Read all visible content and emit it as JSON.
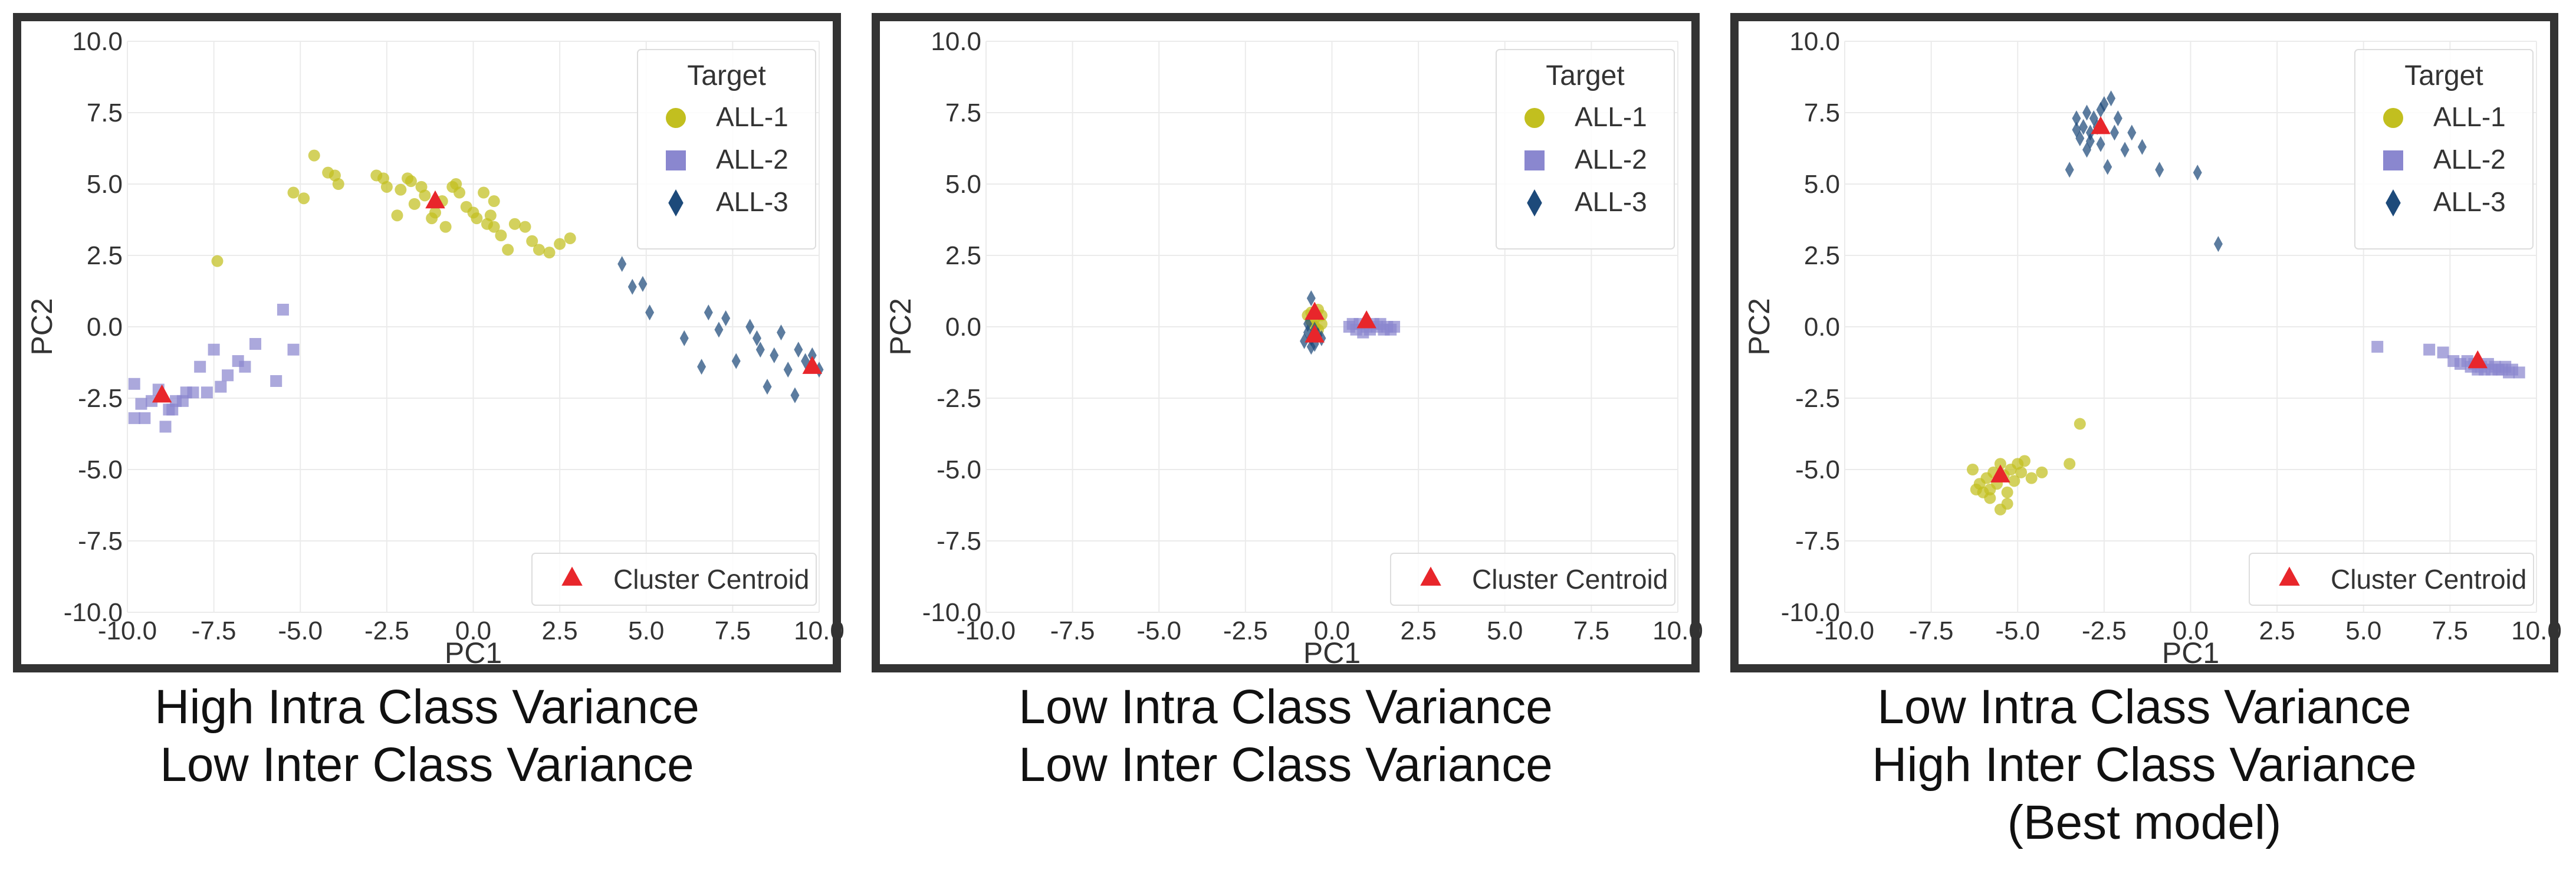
{
  "colors": {
    "all1": "#c2bf1f",
    "all2": "#8a87cf",
    "all3": "#1d4a7a",
    "centroid": "#e8262b"
  },
  "legend": {
    "title": "Target",
    "entries": [
      {
        "label": "ALL-1",
        "marker": "circle-icon"
      },
      {
        "label": "ALL-2",
        "marker": "square-icon"
      },
      {
        "label": "ALL-3",
        "marker": "diamond-icon"
      }
    ],
    "centroid_label": "Cluster Centroid"
  },
  "chart_data": [
    {
      "type": "scatter",
      "xlabel": "PC1",
      "ylabel": "PC2",
      "xlim": [
        -10,
        10
      ],
      "ylim": [
        -10,
        10
      ],
      "xticks": [
        "-10.0",
        "-7.5",
        "-5.0",
        "-2.5",
        "0.0",
        "2.5",
        "5.0",
        "7.5",
        "10.0"
      ],
      "yticks": [
        "10.0",
        "7.5",
        "5.0",
        "2.5",
        "0.0",
        "-2.5",
        "-5.0",
        "-7.5",
        "-10.0"
      ],
      "caption": [
        "High Intra Class Variance",
        "Low Inter Class Variance"
      ],
      "series": [
        {
          "name": "ALL-1",
          "points": [
            [
              -7.4,
              2.3
            ],
            [
              -5.2,
              4.7
            ],
            [
              -4.9,
              4.5
            ],
            [
              -4.6,
              6.0
            ],
            [
              -4.2,
              5.4
            ],
            [
              -3.9,
              5.0
            ],
            [
              -4.0,
              5.3
            ],
            [
              -2.8,
              5.3
            ],
            [
              -2.6,
              5.2
            ],
            [
              -2.5,
              4.9
            ],
            [
              -2.1,
              4.8
            ],
            [
              -2.2,
              3.9
            ],
            [
              -1.9,
              5.2
            ],
            [
              -1.8,
              5.1
            ],
            [
              -1.7,
              4.3
            ],
            [
              -1.5,
              4.9
            ],
            [
              -1.4,
              4.6
            ],
            [
              -1.2,
              3.8
            ],
            [
              -1.1,
              4.0
            ],
            [
              -0.9,
              4.4
            ],
            [
              -0.8,
              3.5
            ],
            [
              -0.6,
              4.9
            ],
            [
              -0.5,
              5.0
            ],
            [
              -0.4,
              4.7
            ],
            [
              -0.2,
              4.2
            ],
            [
              0.0,
              4.0
            ],
            [
              0.1,
              3.8
            ],
            [
              0.3,
              4.7
            ],
            [
              0.5,
              3.9
            ],
            [
              0.6,
              3.5
            ],
            [
              0.8,
              3.2
            ],
            [
              1.0,
              2.7
            ],
            [
              1.2,
              3.6
            ],
            [
              1.5,
              3.5
            ],
            [
              1.7,
              3.0
            ],
            [
              1.9,
              2.7
            ],
            [
              2.2,
              2.6
            ],
            [
              2.5,
              2.9
            ],
            [
              2.8,
              3.1
            ],
            [
              0.4,
              3.6
            ],
            [
              0.6,
              4.4
            ]
          ]
        },
        {
          "name": "ALL-2",
          "points": [
            [
              -9.8,
              -2.0
            ],
            [
              -9.8,
              -3.2
            ],
            [
              -9.5,
              -3.2
            ],
            [
              -9.3,
              -2.6
            ],
            [
              -9.1,
              -2.2
            ],
            [
              -8.9,
              -3.5
            ],
            [
              -8.7,
              -2.9
            ],
            [
              -8.6,
              -2.6
            ],
            [
              -8.4,
              -2.6
            ],
            [
              -8.3,
              -2.3
            ],
            [
              -8.1,
              -2.3
            ],
            [
              -7.9,
              -1.4
            ],
            [
              -7.7,
              -2.3
            ],
            [
              -7.5,
              -0.8
            ],
            [
              -7.3,
              -2.1
            ],
            [
              -7.1,
              -1.7
            ],
            [
              -6.8,
              -1.2
            ],
            [
              -6.6,
              -1.4
            ],
            [
              -6.3,
              -0.6
            ],
            [
              -5.7,
              -1.9
            ],
            [
              -5.5,
              0.6
            ],
            [
              -5.2,
              -0.8
            ],
            [
              -8.8,
              -2.9
            ],
            [
              -9.6,
              -2.7
            ]
          ]
        },
        {
          "name": "ALL-3",
          "points": [
            [
              4.3,
              2.2
            ],
            [
              4.6,
              1.4
            ],
            [
              4.9,
              1.5
            ],
            [
              5.1,
              0.5
            ],
            [
              6.1,
              -0.4
            ],
            [
              6.6,
              -1.4
            ],
            [
              6.8,
              0.5
            ],
            [
              7.1,
              -0.1
            ],
            [
              7.3,
              0.3
            ],
            [
              7.6,
              -1.2
            ],
            [
              8.0,
              0.0
            ],
            [
              8.2,
              -0.4
            ],
            [
              8.3,
              -0.8
            ],
            [
              8.5,
              -2.1
            ],
            [
              8.7,
              -1.0
            ],
            [
              8.9,
              -0.2
            ],
            [
              9.1,
              -1.5
            ],
            [
              9.3,
              -2.4
            ],
            [
              9.4,
              -0.8
            ],
            [
              9.6,
              -1.2
            ],
            [
              9.8,
              -1.0
            ],
            [
              10.0,
              -1.5
            ]
          ]
        }
      ],
      "centroids": [
        [
          -1.1,
          4.4
        ],
        [
          -9.0,
          -2.4
        ],
        [
          9.8,
          -1.4
        ]
      ]
    },
    {
      "type": "scatter",
      "xlabel": "PC1",
      "ylabel": "PC2",
      "xlim": [
        -10,
        10
      ],
      "ylim": [
        -10,
        10
      ],
      "xticks": [
        "-10.0",
        "-7.5",
        "-5.0",
        "-2.5",
        "0.0",
        "2.5",
        "5.0",
        "7.5",
        "10.0"
      ],
      "yticks": [
        "10.0",
        "7.5",
        "5.0",
        "2.5",
        "0.0",
        "-2.5",
        "-5.0",
        "-7.5",
        "-10.0"
      ],
      "caption": [
        "Low Intra Class Variance",
        "Low Inter Class Variance"
      ],
      "series": [
        {
          "name": "ALL-1",
          "points": [
            [
              -0.6,
              0.5
            ],
            [
              -0.5,
              0.3
            ],
            [
              -0.4,
              0.6
            ],
            [
              -0.6,
              0.2
            ],
            [
              -0.3,
              0.4
            ],
            [
              -0.5,
              0.0
            ],
            [
              -0.4,
              -0.1
            ],
            [
              -0.7,
              0.4
            ],
            [
              -0.3,
              0.1
            ]
          ]
        },
        {
          "name": "ALL-2",
          "points": [
            [
              0.5,
              0.0
            ],
            [
              0.7,
              -0.1
            ],
            [
              0.8,
              0.1
            ],
            [
              1.0,
              0.0
            ],
            [
              1.1,
              -0.1
            ],
            [
              1.2,
              0.1
            ],
            [
              1.3,
              0.0
            ],
            [
              1.5,
              -0.1
            ],
            [
              1.6,
              0.0
            ],
            [
              1.8,
              0.0
            ],
            [
              0.9,
              -0.2
            ],
            [
              1.4,
              0.1
            ],
            [
              0.6,
              0.1
            ],
            [
              1.7,
              -0.1
            ]
          ]
        },
        {
          "name": "ALL-3",
          "points": [
            [
              -0.6,
              1.0
            ],
            [
              -0.7,
              -0.2
            ],
            [
              -0.6,
              -0.4
            ],
            [
              -0.5,
              -0.6
            ],
            [
              -0.4,
              -0.3
            ],
            [
              -0.8,
              -0.5
            ],
            [
              -0.5,
              -0.1
            ],
            [
              -0.3,
              -0.4
            ],
            [
              -0.7,
              0.1
            ],
            [
              -0.6,
              -0.7
            ]
          ]
        }
      ],
      "centroids": [
        [
          -0.5,
          0.5
        ],
        [
          -0.5,
          -0.3
        ],
        [
          1.0,
          0.2
        ]
      ]
    },
    {
      "type": "scatter",
      "xlabel": "PC1",
      "ylabel": "PC2",
      "xlim": [
        -10,
        10
      ],
      "ylim": [
        -10,
        10
      ],
      "xticks": [
        "-10.0",
        "-7.5",
        "-5.0",
        "-2.5",
        "0.0",
        "2.5",
        "5.0",
        "7.5",
        "10.0"
      ],
      "yticks": [
        "10.0",
        "7.5",
        "5.0",
        "2.5",
        "0.0",
        "-2.5",
        "-5.0",
        "-7.5",
        "-10.0"
      ],
      "caption": [
        "Low Intra Class Variance",
        "High Inter Class Variance",
        "(Best model)"
      ],
      "series": [
        {
          "name": "ALL-1",
          "points": [
            [
              -6.3,
              -5.0
            ],
            [
              -6.1,
              -5.5
            ],
            [
              -6.0,
              -5.8
            ],
            [
              -5.9,
              -5.3
            ],
            [
              -5.8,
              -5.7
            ],
            [
              -5.7,
              -5.1
            ],
            [
              -5.6,
              -5.5
            ],
            [
              -5.5,
              -4.8
            ],
            [
              -5.5,
              -6.4
            ],
            [
              -5.4,
              -5.2
            ],
            [
              -5.3,
              -5.8
            ],
            [
              -5.2,
              -5.0
            ],
            [
              -5.1,
              -5.4
            ],
            [
              -5.0,
              -4.8
            ],
            [
              -4.9,
              -5.1
            ],
            [
              -4.8,
              -4.7
            ],
            [
              -4.6,
              -5.3
            ],
            [
              -4.3,
              -5.1
            ],
            [
              -3.5,
              -4.8
            ],
            [
              -3.2,
              -3.4
            ],
            [
              -5.8,
              -6.0
            ],
            [
              -5.3,
              -6.2
            ],
            [
              -6.2,
              -5.7
            ]
          ]
        },
        {
          "name": "ALL-2",
          "points": [
            [
              5.4,
              -0.7
            ],
            [
              6.9,
              -0.8
            ],
            [
              7.3,
              -0.9
            ],
            [
              7.6,
              -1.2
            ],
            [
              7.8,
              -1.3
            ],
            [
              8.0,
              -1.2
            ],
            [
              8.1,
              -1.4
            ],
            [
              8.2,
              -1.3
            ],
            [
              8.4,
              -1.4
            ],
            [
              8.5,
              -1.5
            ],
            [
              8.6,
              -1.3
            ],
            [
              8.7,
              -1.5
            ],
            [
              8.8,
              -1.4
            ],
            [
              8.9,
              -1.5
            ],
            [
              9.0,
              -1.5
            ],
            [
              9.1,
              -1.4
            ],
            [
              9.2,
              -1.6
            ],
            [
              9.3,
              -1.5
            ],
            [
              9.5,
              -1.6
            ],
            [
              8.3,
              -1.5
            ]
          ]
        },
        {
          "name": "ALL-3",
          "points": [
            [
              -3.5,
              5.5
            ],
            [
              -3.3,
              7.3
            ],
            [
              -3.2,
              6.6
            ],
            [
              -3.1,
              7.0
            ],
            [
              -3.0,
              7.5
            ],
            [
              -3.0,
              6.2
            ],
            [
              -2.9,
              6.8
            ],
            [
              -2.8,
              7.3
            ],
            [
              -2.7,
              7.0
            ],
            [
              -2.6,
              6.4
            ],
            [
              -2.5,
              7.8
            ],
            [
              -2.4,
              5.6
            ],
            [
              -2.3,
              8.0
            ],
            [
              -2.2,
              6.8
            ],
            [
              -2.1,
              7.3
            ],
            [
              -1.9,
              6.2
            ],
            [
              -1.7,
              6.8
            ],
            [
              -1.4,
              6.3
            ],
            [
              -0.9,
              5.5
            ],
            [
              0.2,
              5.4
            ],
            [
              0.8,
              2.9
            ],
            [
              -3.3,
              6.9
            ],
            [
              -2.9,
              6.5
            ],
            [
              -2.6,
              7.6
            ]
          ]
        }
      ],
      "centroids": [
        [
          -5.5,
          -5.2
        ],
        [
          8.3,
          -1.2
        ],
        [
          -2.6,
          7.0
        ]
      ]
    }
  ]
}
